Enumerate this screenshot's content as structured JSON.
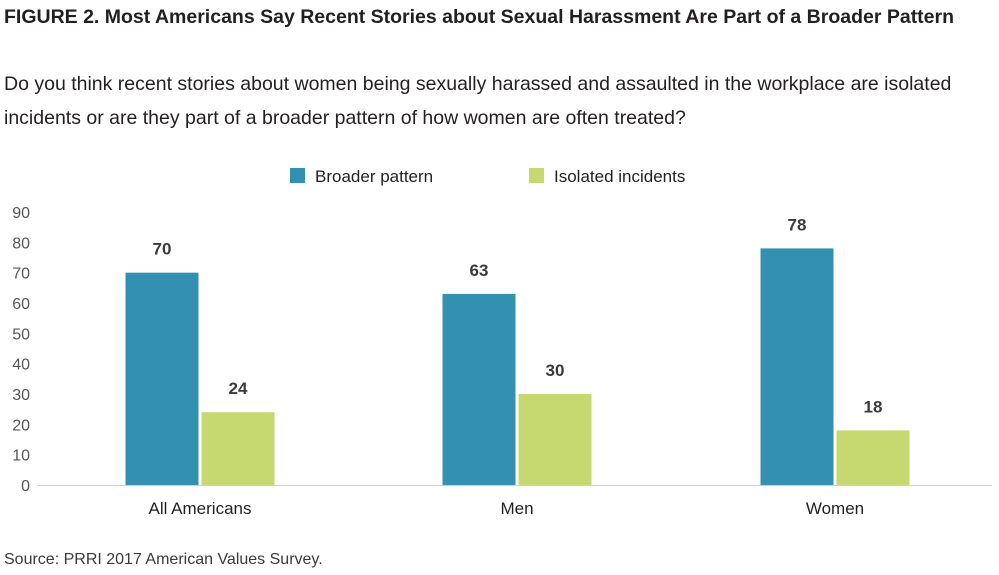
{
  "figure": {
    "title": "FIGURE 2.  Most Americans Say Recent Stories about Sexual Harassment Are Part of a Broader Pattern",
    "subtitle": "Do you think recent stories about women being sexually harassed and assaulted in the workplace are isolated incidents or are they part of a broader pattern of how women are often treated?",
    "source": "Source: PRRI 2017 American Values Survey."
  },
  "chart_data": {
    "type": "bar",
    "categories": [
      "All Americans",
      "Men",
      "Women"
    ],
    "series": [
      {
        "name": "Broader pattern",
        "values": [
          70,
          63,
          78
        ],
        "color": "#3390b0"
      },
      {
        "name": "Isolated incidents",
        "values": [
          24,
          30,
          18
        ],
        "color": "#c5d970"
      }
    ],
    "ylim": [
      0,
      90
    ],
    "yticks": [
      0,
      10,
      20,
      30,
      40,
      50,
      60,
      70,
      80,
      90
    ],
    "grid": false,
    "legend_position": "top-center",
    "xlabel": "",
    "ylabel": ""
  }
}
